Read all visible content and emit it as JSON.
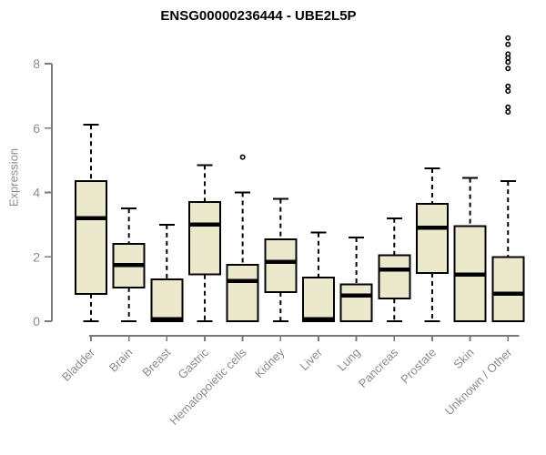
{
  "title": "ENSG00000236444 - UBE2L5P",
  "colors": {
    "background": "#ffffff",
    "box_fill": "#ece8cb",
    "box_border": "#000000",
    "median": "#000000",
    "whisker": "#000000",
    "outlier": "#000000",
    "axis": "#7a7a7a",
    "tick_label": "#8c8c8c",
    "axis_label": "#8c8c8c",
    "title_color": "#000000"
  },
  "chart_data": {
    "type": "boxplot",
    "title": "ENSG00000236444 - UBE2L5P",
    "xlabel": "",
    "ylabel": "Expression",
    "ylim": [
      0,
      8.9
    ],
    "yticks": [
      0,
      2,
      4,
      6,
      8
    ],
    "grid": false,
    "legend": "none",
    "categories": [
      "Bladder",
      "Brain",
      "Breast",
      "Gastric",
      "Hematopoietic cells",
      "Kidney",
      "Liver",
      "Lung",
      "Pancreas",
      "Prostate",
      "Skin",
      "Unknown / Other"
    ],
    "boxes": [
      {
        "category": "Bladder",
        "whisker_low": 0,
        "q1": 0.85,
        "median": 3.2,
        "q3": 4.35,
        "whisker_high": 6.1,
        "outliers": []
      },
      {
        "category": "Brain",
        "whisker_low": 0,
        "q1": 1.05,
        "median": 1.75,
        "q3": 2.4,
        "whisker_high": 3.5,
        "outliers": []
      },
      {
        "category": "Breast",
        "whisker_low": 0,
        "q1": 0,
        "median": 0.07,
        "q3": 1.3,
        "whisker_high": 3.0,
        "outliers": []
      },
      {
        "category": "Gastric",
        "whisker_low": 0,
        "q1": 1.45,
        "median": 3.0,
        "q3": 3.7,
        "whisker_high": 4.85,
        "outliers": []
      },
      {
        "category": "Hematopoietic cells",
        "whisker_low": 0,
        "q1": 0,
        "median": 1.25,
        "q3": 1.75,
        "whisker_high": 4.0,
        "outliers": [
          5.1
        ]
      },
      {
        "category": "Kidney",
        "whisker_low": 0,
        "q1": 0.9,
        "median": 1.85,
        "q3": 2.55,
        "whisker_high": 3.8,
        "outliers": []
      },
      {
        "category": "Liver",
        "whisker_low": 0,
        "q1": 0,
        "median": 0.07,
        "q3": 1.35,
        "whisker_high": 2.75,
        "outliers": []
      },
      {
        "category": "Lung",
        "whisker_low": 0,
        "q1": 0,
        "median": 0.8,
        "q3": 1.15,
        "whisker_high": 2.6,
        "outliers": []
      },
      {
        "category": "Pancreas",
        "whisker_low": 0,
        "q1": 0.7,
        "median": 1.6,
        "q3": 2.05,
        "whisker_high": 3.2,
        "outliers": []
      },
      {
        "category": "Prostate",
        "whisker_low": 0,
        "q1": 1.5,
        "median": 2.9,
        "q3": 3.65,
        "whisker_high": 4.75,
        "outliers": []
      },
      {
        "category": "Skin",
        "whisker_low": 0,
        "q1": 0,
        "median": 1.45,
        "q3": 2.95,
        "whisker_high": 4.45,
        "outliers": []
      },
      {
        "category": "Unknown / Other",
        "whisker_low": 0,
        "q1": 0,
        "median": 0.85,
        "q3": 2.0,
        "whisker_high": 4.35,
        "outliers": [
          8.8,
          8.6,
          8.3,
          8.18,
          8.05,
          7.85,
          7.3,
          7.15,
          6.65,
          6.5
        ]
      }
    ]
  }
}
